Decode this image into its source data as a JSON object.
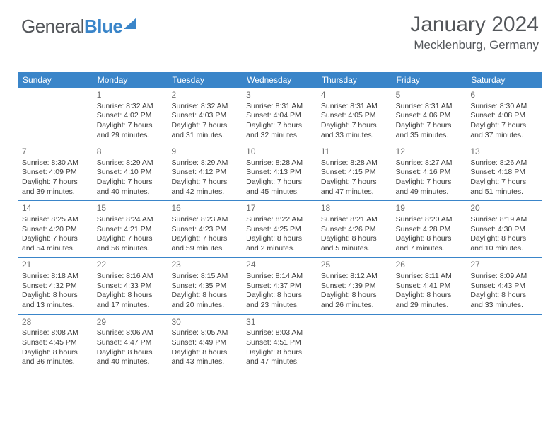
{
  "brand": {
    "name_part1": "General",
    "name_part2": "Blue"
  },
  "title": "January 2024",
  "location": "Mecklenburg, Germany",
  "header_bg": "#3a85c9",
  "header_fg": "#ffffff",
  "text_color": "#3b3b3b",
  "day_headers": [
    "Sunday",
    "Monday",
    "Tuesday",
    "Wednesday",
    "Thursday",
    "Friday",
    "Saturday"
  ],
  "weeks": [
    [
      {
        "n": "",
        "sunrise": "",
        "sunset": "",
        "daylight1": "",
        "daylight2": ""
      },
      {
        "n": "1",
        "sunrise": "Sunrise: 8:32 AM",
        "sunset": "Sunset: 4:02 PM",
        "daylight1": "Daylight: 7 hours",
        "daylight2": "and 29 minutes."
      },
      {
        "n": "2",
        "sunrise": "Sunrise: 8:32 AM",
        "sunset": "Sunset: 4:03 PM",
        "daylight1": "Daylight: 7 hours",
        "daylight2": "and 31 minutes."
      },
      {
        "n": "3",
        "sunrise": "Sunrise: 8:31 AM",
        "sunset": "Sunset: 4:04 PM",
        "daylight1": "Daylight: 7 hours",
        "daylight2": "and 32 minutes."
      },
      {
        "n": "4",
        "sunrise": "Sunrise: 8:31 AM",
        "sunset": "Sunset: 4:05 PM",
        "daylight1": "Daylight: 7 hours",
        "daylight2": "and 33 minutes."
      },
      {
        "n": "5",
        "sunrise": "Sunrise: 8:31 AM",
        "sunset": "Sunset: 4:06 PM",
        "daylight1": "Daylight: 7 hours",
        "daylight2": "and 35 minutes."
      },
      {
        "n": "6",
        "sunrise": "Sunrise: 8:30 AM",
        "sunset": "Sunset: 4:08 PM",
        "daylight1": "Daylight: 7 hours",
        "daylight2": "and 37 minutes."
      }
    ],
    [
      {
        "n": "7",
        "sunrise": "Sunrise: 8:30 AM",
        "sunset": "Sunset: 4:09 PM",
        "daylight1": "Daylight: 7 hours",
        "daylight2": "and 39 minutes."
      },
      {
        "n": "8",
        "sunrise": "Sunrise: 8:29 AM",
        "sunset": "Sunset: 4:10 PM",
        "daylight1": "Daylight: 7 hours",
        "daylight2": "and 40 minutes."
      },
      {
        "n": "9",
        "sunrise": "Sunrise: 8:29 AM",
        "sunset": "Sunset: 4:12 PM",
        "daylight1": "Daylight: 7 hours",
        "daylight2": "and 42 minutes."
      },
      {
        "n": "10",
        "sunrise": "Sunrise: 8:28 AM",
        "sunset": "Sunset: 4:13 PM",
        "daylight1": "Daylight: 7 hours",
        "daylight2": "and 45 minutes."
      },
      {
        "n": "11",
        "sunrise": "Sunrise: 8:28 AM",
        "sunset": "Sunset: 4:15 PM",
        "daylight1": "Daylight: 7 hours",
        "daylight2": "and 47 minutes."
      },
      {
        "n": "12",
        "sunrise": "Sunrise: 8:27 AM",
        "sunset": "Sunset: 4:16 PM",
        "daylight1": "Daylight: 7 hours",
        "daylight2": "and 49 minutes."
      },
      {
        "n": "13",
        "sunrise": "Sunrise: 8:26 AM",
        "sunset": "Sunset: 4:18 PM",
        "daylight1": "Daylight: 7 hours",
        "daylight2": "and 51 minutes."
      }
    ],
    [
      {
        "n": "14",
        "sunrise": "Sunrise: 8:25 AM",
        "sunset": "Sunset: 4:20 PM",
        "daylight1": "Daylight: 7 hours",
        "daylight2": "and 54 minutes."
      },
      {
        "n": "15",
        "sunrise": "Sunrise: 8:24 AM",
        "sunset": "Sunset: 4:21 PM",
        "daylight1": "Daylight: 7 hours",
        "daylight2": "and 56 minutes."
      },
      {
        "n": "16",
        "sunrise": "Sunrise: 8:23 AM",
        "sunset": "Sunset: 4:23 PM",
        "daylight1": "Daylight: 7 hours",
        "daylight2": "and 59 minutes."
      },
      {
        "n": "17",
        "sunrise": "Sunrise: 8:22 AM",
        "sunset": "Sunset: 4:25 PM",
        "daylight1": "Daylight: 8 hours",
        "daylight2": "and 2 minutes."
      },
      {
        "n": "18",
        "sunrise": "Sunrise: 8:21 AM",
        "sunset": "Sunset: 4:26 PM",
        "daylight1": "Daylight: 8 hours",
        "daylight2": "and 5 minutes."
      },
      {
        "n": "19",
        "sunrise": "Sunrise: 8:20 AM",
        "sunset": "Sunset: 4:28 PM",
        "daylight1": "Daylight: 8 hours",
        "daylight2": "and 7 minutes."
      },
      {
        "n": "20",
        "sunrise": "Sunrise: 8:19 AM",
        "sunset": "Sunset: 4:30 PM",
        "daylight1": "Daylight: 8 hours",
        "daylight2": "and 10 minutes."
      }
    ],
    [
      {
        "n": "21",
        "sunrise": "Sunrise: 8:18 AM",
        "sunset": "Sunset: 4:32 PM",
        "daylight1": "Daylight: 8 hours",
        "daylight2": "and 13 minutes."
      },
      {
        "n": "22",
        "sunrise": "Sunrise: 8:16 AM",
        "sunset": "Sunset: 4:33 PM",
        "daylight1": "Daylight: 8 hours",
        "daylight2": "and 17 minutes."
      },
      {
        "n": "23",
        "sunrise": "Sunrise: 8:15 AM",
        "sunset": "Sunset: 4:35 PM",
        "daylight1": "Daylight: 8 hours",
        "daylight2": "and 20 minutes."
      },
      {
        "n": "24",
        "sunrise": "Sunrise: 8:14 AM",
        "sunset": "Sunset: 4:37 PM",
        "daylight1": "Daylight: 8 hours",
        "daylight2": "and 23 minutes."
      },
      {
        "n": "25",
        "sunrise": "Sunrise: 8:12 AM",
        "sunset": "Sunset: 4:39 PM",
        "daylight1": "Daylight: 8 hours",
        "daylight2": "and 26 minutes."
      },
      {
        "n": "26",
        "sunrise": "Sunrise: 8:11 AM",
        "sunset": "Sunset: 4:41 PM",
        "daylight1": "Daylight: 8 hours",
        "daylight2": "and 29 minutes."
      },
      {
        "n": "27",
        "sunrise": "Sunrise: 8:09 AM",
        "sunset": "Sunset: 4:43 PM",
        "daylight1": "Daylight: 8 hours",
        "daylight2": "and 33 minutes."
      }
    ],
    [
      {
        "n": "28",
        "sunrise": "Sunrise: 8:08 AM",
        "sunset": "Sunset: 4:45 PM",
        "daylight1": "Daylight: 8 hours",
        "daylight2": "and 36 minutes."
      },
      {
        "n": "29",
        "sunrise": "Sunrise: 8:06 AM",
        "sunset": "Sunset: 4:47 PM",
        "daylight1": "Daylight: 8 hours",
        "daylight2": "and 40 minutes."
      },
      {
        "n": "30",
        "sunrise": "Sunrise: 8:05 AM",
        "sunset": "Sunset: 4:49 PM",
        "daylight1": "Daylight: 8 hours",
        "daylight2": "and 43 minutes."
      },
      {
        "n": "31",
        "sunrise": "Sunrise: 8:03 AM",
        "sunset": "Sunset: 4:51 PM",
        "daylight1": "Daylight: 8 hours",
        "daylight2": "and 47 minutes."
      },
      {
        "n": "",
        "sunrise": "",
        "sunset": "",
        "daylight1": "",
        "daylight2": ""
      },
      {
        "n": "",
        "sunrise": "",
        "sunset": "",
        "daylight1": "",
        "daylight2": ""
      },
      {
        "n": "",
        "sunrise": "",
        "sunset": "",
        "daylight1": "",
        "daylight2": ""
      }
    ]
  ]
}
